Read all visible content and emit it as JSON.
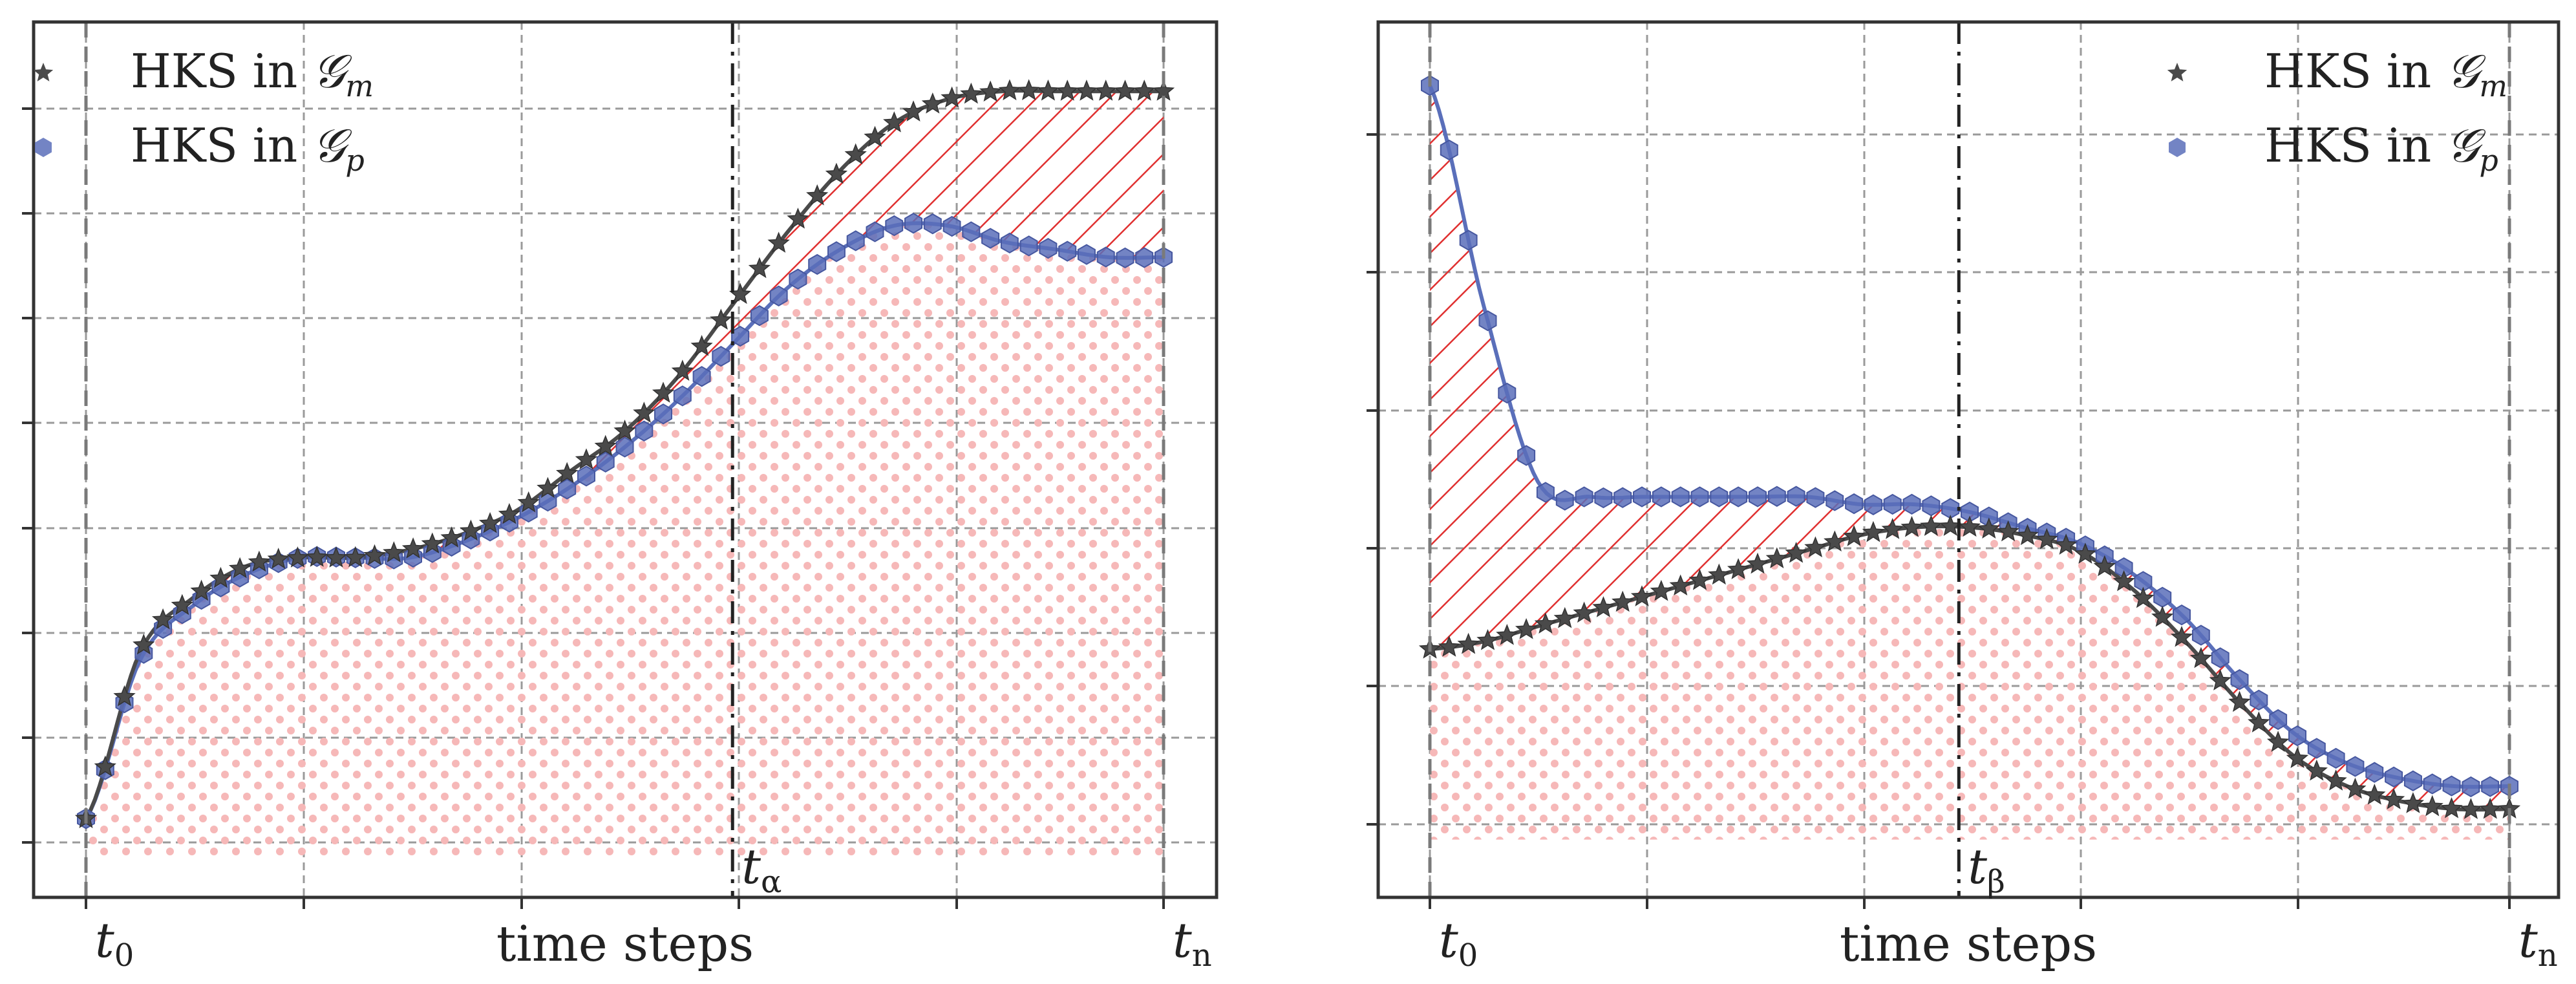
{
  "chart_data": [
    {
      "type": "line",
      "panel": "left",
      "xlabel": "time steps",
      "x_tick_labels": [
        "t0",
        "tn"
      ],
      "marker_label": "tα",
      "xlim": [
        0,
        1
      ],
      "ylim": [
        0,
        1
      ],
      "x": [
        0.0,
        0.05,
        0.1,
        0.15,
        0.2,
        0.25,
        0.3,
        0.35,
        0.4,
        0.45,
        0.5,
        0.55,
        0.6,
        0.65,
        0.7,
        0.75,
        0.8,
        0.85,
        0.9,
        0.95,
        1.0
      ],
      "series": [
        {
          "name": "HKS in 𝒢m",
          "marker": "star",
          "color": "#4a4a4a",
          "values": [
            0.03,
            0.24,
            0.31,
            0.35,
            0.36,
            0.36,
            0.37,
            0.39,
            0.42,
            0.47,
            0.52,
            0.59,
            0.68,
            0.77,
            0.85,
            0.91,
            0.94,
            0.95,
            0.95,
            0.95,
            0.95
          ]
        },
        {
          "name": "HKS in 𝒢p",
          "marker": "hexagon",
          "color": "#5a6fba",
          "values": [
            0.03,
            0.23,
            0.3,
            0.34,
            0.36,
            0.36,
            0.36,
            0.38,
            0.41,
            0.45,
            0.5,
            0.56,
            0.63,
            0.7,
            0.75,
            0.78,
            0.78,
            0.76,
            0.75,
            0.74,
            0.74
          ]
        }
      ],
      "marker_x": 0.6,
      "legend": "upper-left",
      "grid": true
    },
    {
      "type": "line",
      "panel": "right",
      "xlabel": "time steps",
      "x_tick_labels": [
        "t0",
        "tn"
      ],
      "marker_label": "tβ",
      "xlim": [
        0,
        1
      ],
      "ylim": [
        0,
        1
      ],
      "x": [
        0.0,
        0.05,
        0.1,
        0.15,
        0.2,
        0.25,
        0.3,
        0.35,
        0.4,
        0.45,
        0.5,
        0.55,
        0.6,
        0.65,
        0.7,
        0.75,
        0.8,
        0.85,
        0.9,
        0.95,
        1.0
      ],
      "series": [
        {
          "name": "HKS in 𝒢m",
          "marker": "star",
          "color": "#4a4a4a",
          "values": [
            0.23,
            0.24,
            0.26,
            0.28,
            0.3,
            0.32,
            0.34,
            0.36,
            0.38,
            0.39,
            0.39,
            0.38,
            0.36,
            0.31,
            0.24,
            0.16,
            0.09,
            0.05,
            0.03,
            0.02,
            0.02
          ]
        },
        {
          "name": "HKS in 𝒢p",
          "marker": "hexagon",
          "color": "#5a6fba",
          "values": [
            0.97,
            0.68,
            0.45,
            0.43,
            0.43,
            0.43,
            0.43,
            0.43,
            0.42,
            0.42,
            0.41,
            0.39,
            0.37,
            0.33,
            0.27,
            0.19,
            0.12,
            0.08,
            0.06,
            0.05,
            0.05
          ]
        }
      ],
      "marker_x": 0.49,
      "legend": "upper-right",
      "grid": true
    }
  ],
  "legend_labels": {
    "prefix": "HKS in ",
    "m_symbol": "𝒢",
    "m_sub": "m",
    "p_symbol": "𝒢",
    "p_sub": "p"
  },
  "colors": {
    "hatch": "#e03030",
    "dots": "#f6b8b8",
    "series_m": "#4a4a4a",
    "series_p": "#5a6fba"
  }
}
